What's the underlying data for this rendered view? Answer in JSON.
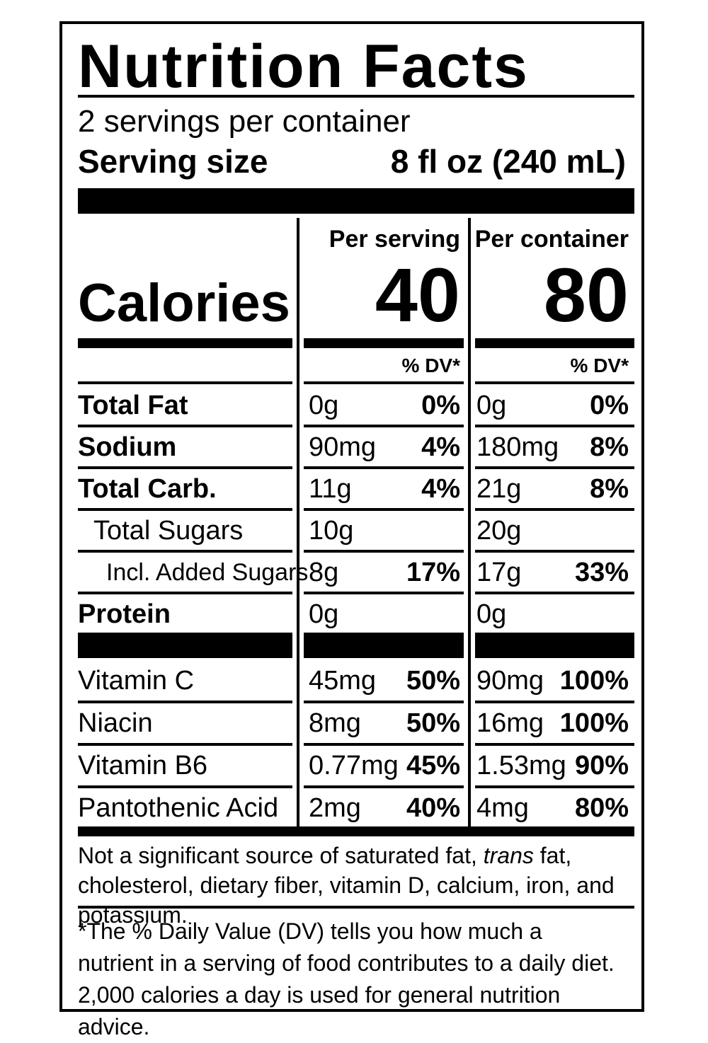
{
  "title": "Nutrition Facts",
  "servings_per_container": "2 servings per container",
  "serving_size_label": "Serving size",
  "serving_size_value": "8 fl oz (240 mL)",
  "per_serving_label": "Per serving",
  "per_container_label": "Per container",
  "calories_label": "Calories",
  "calories_per_serving": "40",
  "calories_per_container": "80",
  "dv_label": "% DV*",
  "nutrients": [
    {
      "name": "Total Fat",
      "serving_amount": "0g",
      "serving_dv": "0%",
      "container_amount": "0g",
      "container_dv": "0%"
    },
    {
      "name": "Sodium",
      "serving_amount": "90mg",
      "serving_dv": "4%",
      "container_amount": "180mg",
      "container_dv": "8%"
    },
    {
      "name": "Total Carb.",
      "serving_amount": "11g",
      "serving_dv": "4%",
      "container_amount": "21g",
      "container_dv": "8%"
    },
    {
      "name": "Total Sugars",
      "serving_amount": "10g",
      "serving_dv": "",
      "container_amount": "20g",
      "container_dv": ""
    },
    {
      "name": "Incl. Added Sugars",
      "serving_amount": "8g",
      "serving_dv": "17%",
      "container_amount": "17g",
      "container_dv": "33%"
    },
    {
      "name": "Protein",
      "serving_amount": "0g",
      "serving_dv": "",
      "container_amount": "0g",
      "container_dv": ""
    }
  ],
  "vitamins": [
    {
      "name": "Vitamin C",
      "serving_amount": "45mg",
      "serving_dv": "50%",
      "container_amount": "90mg",
      "container_dv": "100%"
    },
    {
      "name": "Niacin",
      "serving_amount": "8mg",
      "serving_dv": "50%",
      "container_amount": "16mg",
      "container_dv": "100%"
    },
    {
      "name": "Vitamin B6",
      "serving_amount": "0.77mg",
      "serving_dv": "45%",
      "container_amount": "1.53mg",
      "container_dv": "90%"
    },
    {
      "name": "Pantothenic Acid",
      "serving_amount": "2mg",
      "serving_dv": "40%",
      "container_amount": "4mg",
      "container_dv": "80%"
    }
  ],
  "footnote_sources_part1": "Not a significant source of saturated fat, ",
  "footnote_sources_trans": "trans",
  "footnote_sources_part2": " fat, cholesterol, dietary fiber, vitamin D, calcium, iron, and potassium.",
  "footnote_dv": "*The % Daily Value (DV) tells you how much a nutrient in a serving of food contributes to a daily diet. 2,000 calories a day is used for general nutrition advice."
}
